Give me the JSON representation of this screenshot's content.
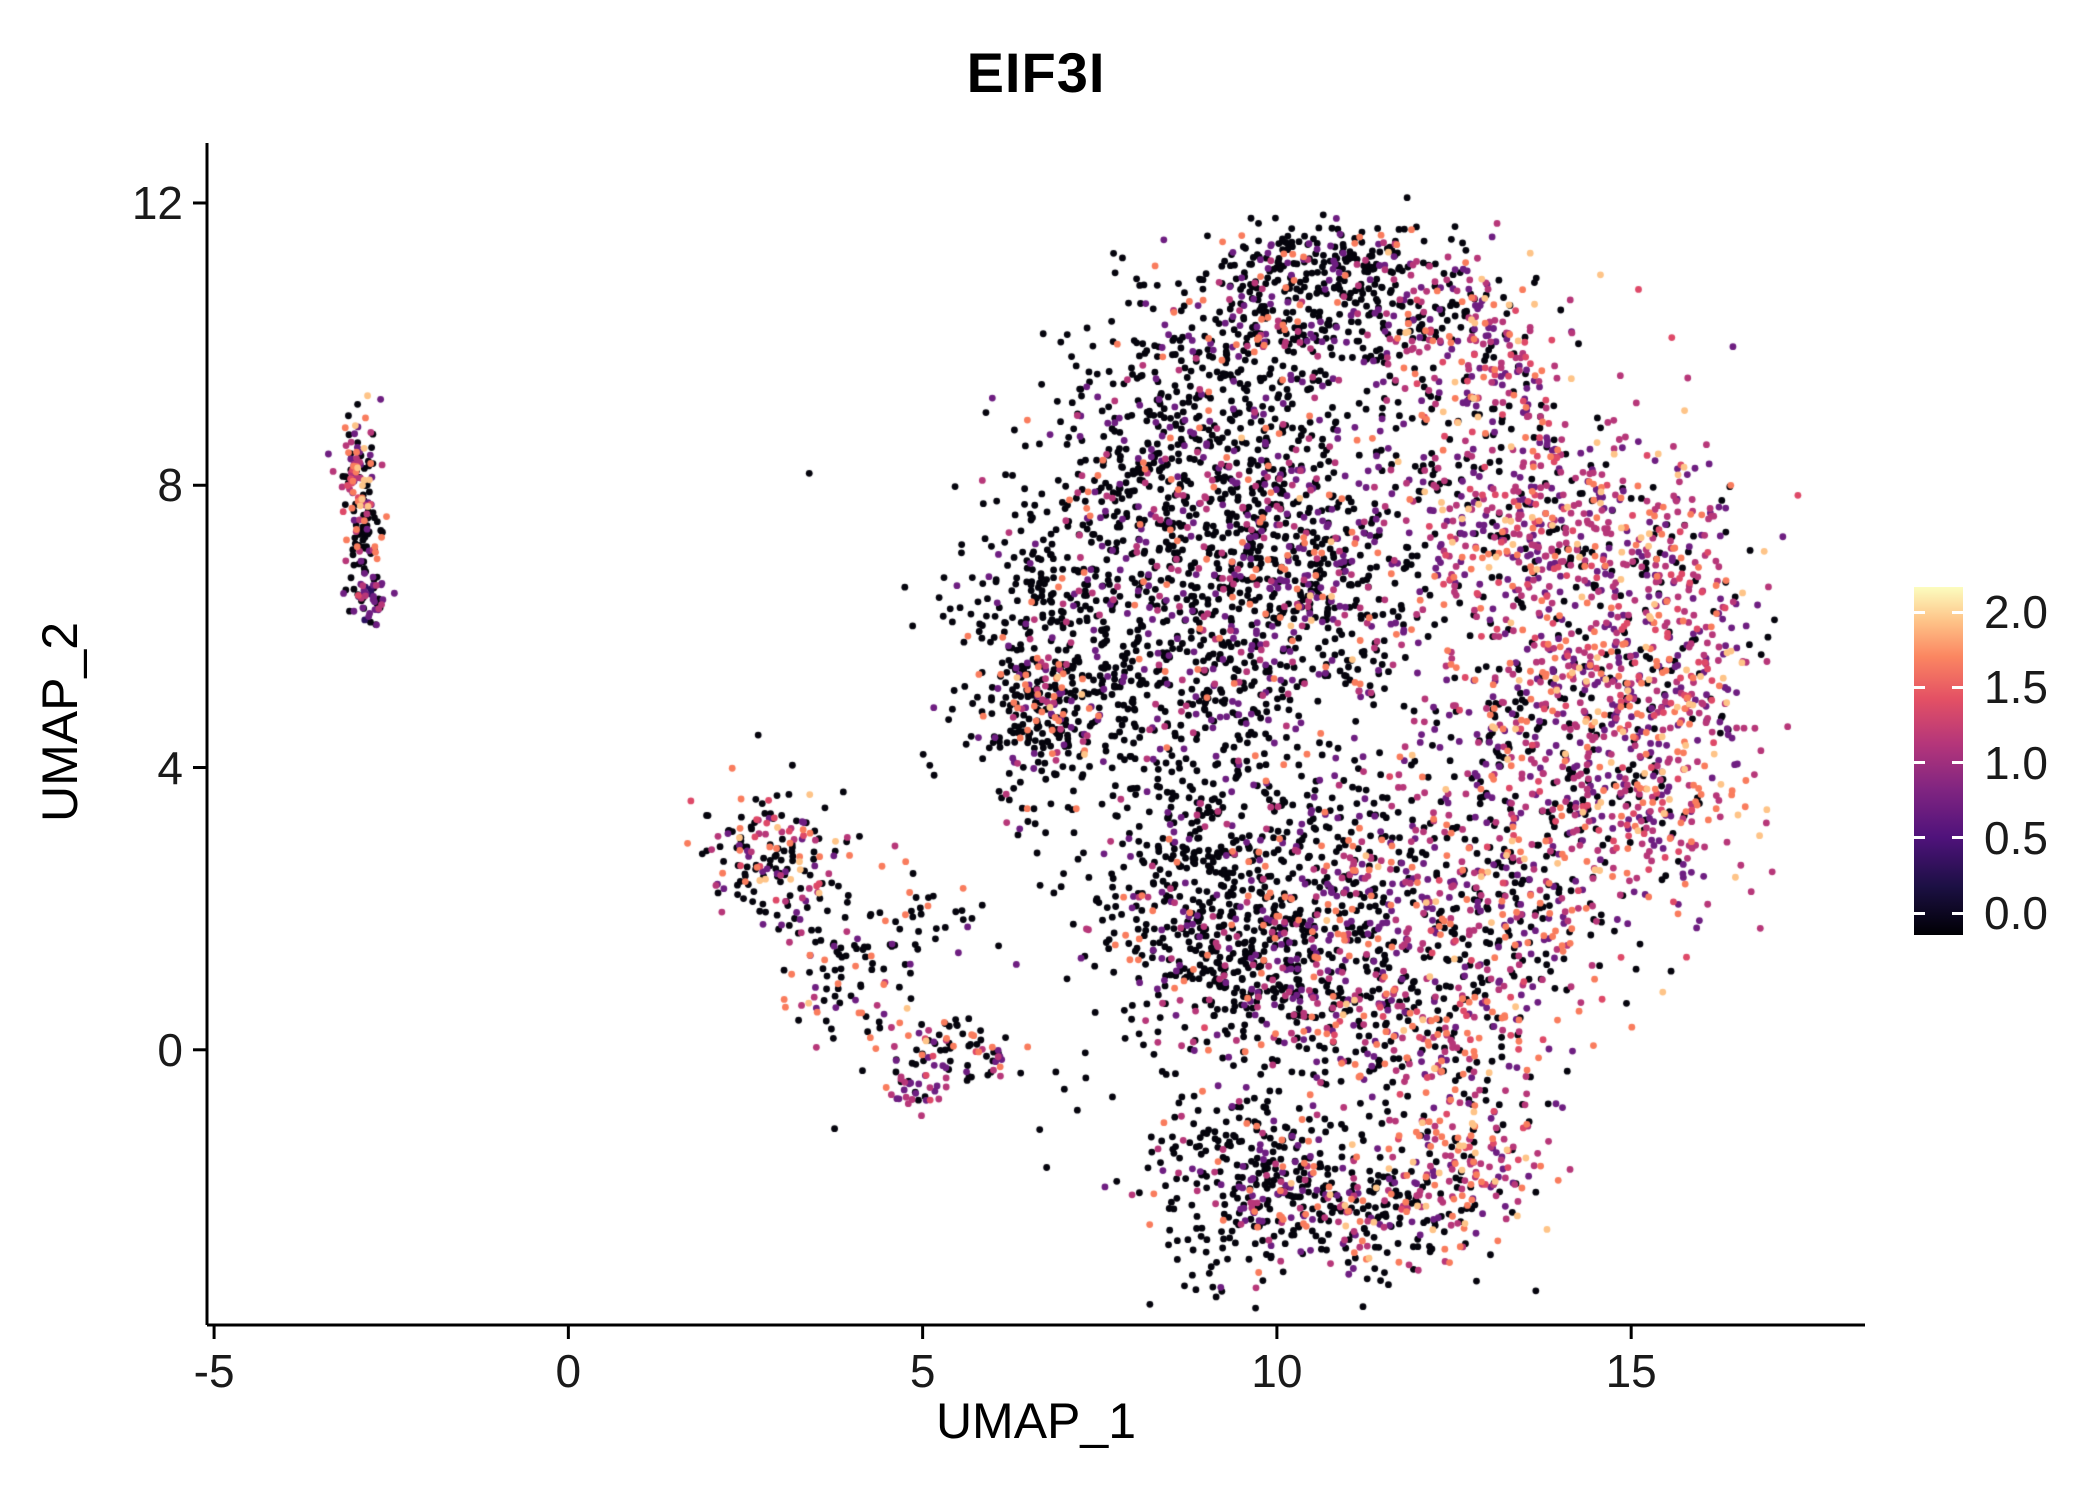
{
  "chart_data": {
    "type": "scatter",
    "title": "EIF3I",
    "xlabel": "UMAP_1",
    "ylabel": "UMAP_2",
    "xlim": [
      -5.1,
      18.3
    ],
    "ylim": [
      -3.9,
      12.85
    ],
    "x_ticks": [
      -5,
      0,
      5,
      10,
      15
    ],
    "x_tick_labels": [
      "-5",
      "0",
      "5",
      "10",
      "15"
    ],
    "y_ticks": [
      0,
      4,
      8,
      12
    ],
    "y_tick_labels": [
      "0",
      "4",
      "8",
      "12"
    ],
    "grid": false,
    "legend_position": "right",
    "point_radius_px": 3.4,
    "palette": {
      "black": "#05040d",
      "dark_purple": "#2c115f",
      "purple": "#6e1e81",
      "magenta": "#b73779",
      "pink": "#de4968",
      "salmon": "#f97c5d",
      "light": "#fec488",
      "cream": "#fcfdbf"
    },
    "palette_order": [
      "black",
      "dark_purple",
      "purple",
      "magenta",
      "pink",
      "salmon",
      "light",
      "cream"
    ],
    "colorbar": {
      "ticks": [
        2.0,
        1.5,
        1.0,
        0.5,
        0.0
      ],
      "tick_labels": [
        "2.0",
        "1.5",
        "1.0",
        "0.5",
        "0.0"
      ],
      "value_range": [
        0.0,
        2.2
      ],
      "stops": [
        {
          "pos": 0.0,
          "color": "#000004"
        },
        {
          "pos": 0.14,
          "color": "#1c1044"
        },
        {
          "pos": 0.28,
          "color": "#4f127b"
        },
        {
          "pos": 0.42,
          "color": "#812581"
        },
        {
          "pos": 0.55,
          "color": "#b5367a"
        },
        {
          "pos": 0.68,
          "color": "#e45164"
        },
        {
          "pos": 0.8,
          "color": "#fb8661"
        },
        {
          "pos": 0.9,
          "color": "#fec287"
        },
        {
          "pos": 1.0,
          "color": "#fcfdbf"
        }
      ]
    },
    "clusters": [
      {
        "name": "left-top",
        "cx": -2.95,
        "cy": 8.15,
        "sx": 0.13,
        "sy": 0.4,
        "n": 100,
        "weights": {
          "black": 0.4,
          "purple": 0.12,
          "magenta": 0.13,
          "pink": 0.1,
          "salmon": 0.18,
          "light": 0.07
        }
      },
      {
        "name": "left-mid",
        "cx": -2.87,
        "cy": 7.1,
        "sx": 0.1,
        "sy": 0.35,
        "n": 60,
        "weights": {
          "black": 0.7,
          "purple": 0.12,
          "magenta": 0.08,
          "salmon": 0.1
        }
      },
      {
        "name": "left-bottom",
        "cx": -2.8,
        "cy": 6.35,
        "sx": 0.13,
        "sy": 0.18,
        "n": 45,
        "weights": {
          "black": 0.25,
          "dark_purple": 0.15,
          "purple": 0.3,
          "magenta": 0.2,
          "pink": 0.05,
          "salmon": 0.05
        }
      },
      {
        "name": "mid-main",
        "cx": 2.95,
        "cy": 2.7,
        "sx": 0.5,
        "sy": 0.5,
        "n": 170,
        "weights": {
          "black": 0.52,
          "purple": 0.13,
          "magenta": 0.08,
          "pink": 0.05,
          "salmon": 0.16,
          "light": 0.06
        }
      },
      {
        "name": "mid-tail",
        "cx": 3.9,
        "cy": 1.15,
        "sx": 0.5,
        "sy": 0.55,
        "n": 90,
        "weights": {
          "black": 0.62,
          "purple": 0.15,
          "magenta": 0.08,
          "salmon": 0.12,
          "light": 0.03
        }
      },
      {
        "name": "mid-right",
        "cx": 5.2,
        "cy": 1.85,
        "sx": 0.55,
        "sy": 0.3,
        "n": 30,
        "weights": {
          "black": 0.85,
          "purple": 0.05,
          "salmon": 0.1
        }
      },
      {
        "name": "mid-low",
        "cx": 5.45,
        "cy": 0.0,
        "sx": 0.5,
        "sy": 0.22,
        "n": 80,
        "weights": {
          "black": 0.45,
          "purple": 0.1,
          "magenta": 0.15,
          "pink": 0.05,
          "salmon": 0.22,
          "light": 0.03
        }
      },
      {
        "name": "mid-low-tip",
        "cx": 4.85,
        "cy": -0.55,
        "sx": 0.22,
        "sy": 0.13,
        "n": 30,
        "weights": {
          "black": 0.2,
          "purple": 0.25,
          "magenta": 0.35,
          "pink": 0.1,
          "salmon": 0.1
        }
      },
      {
        "name": "main-top-left",
        "cx": 9.6,
        "cy": 10.2,
        "sx": 0.85,
        "sy": 0.75,
        "n": 260,
        "weights": {
          "black": 0.74,
          "purple": 0.14,
          "magenta": 0.07,
          "salmon": 0.05
        }
      },
      {
        "name": "main-top-edge",
        "cx": 10.7,
        "cy": 11.05,
        "sx": 0.8,
        "sy": 0.35,
        "n": 150,
        "weights": {
          "black": 0.78,
          "purple": 0.12,
          "magenta": 0.06,
          "salmon": 0.04
        }
      },
      {
        "name": "main-top-mid",
        "cx": 11.6,
        "cy": 10.4,
        "sx": 0.9,
        "sy": 0.6,
        "n": 220,
        "weights": {
          "black": 0.55,
          "purple": 0.2,
          "magenta": 0.14,
          "salmon": 0.08,
          "light": 0.03
        }
      },
      {
        "name": "main-top-right",
        "cx": 12.9,
        "cy": 9.8,
        "sx": 0.65,
        "sy": 0.75,
        "n": 190,
        "weights": {
          "black": 0.22,
          "purple": 0.25,
          "magenta": 0.28,
          "pink": 0.1,
          "salmon": 0.1,
          "light": 0.05
        }
      },
      {
        "name": "main-upper-left",
        "cx": 8.2,
        "cy": 8.7,
        "sx": 0.9,
        "sy": 0.9,
        "n": 270,
        "weights": {
          "black": 0.8,
          "purple": 0.11,
          "magenta": 0.05,
          "salmon": 0.04
        }
      },
      {
        "name": "main-left",
        "cx": 7.2,
        "cy": 5.9,
        "sx": 0.9,
        "sy": 1.1,
        "n": 380,
        "weights": {
          "black": 0.82,
          "purple": 0.09,
          "magenta": 0.05,
          "salmon": 0.04
        }
      },
      {
        "name": "main-left-dense",
        "cx": 6.65,
        "cy": 4.9,
        "sx": 0.45,
        "sy": 0.6,
        "n": 210,
        "weights": {
          "black": 0.68,
          "purple": 0.08,
          "magenta": 0.09,
          "salmon": 0.12,
          "light": 0.03
        }
      },
      {
        "name": "main-center-up",
        "cx": 9.5,
        "cy": 7.7,
        "sx": 1.0,
        "sy": 0.9,
        "n": 420,
        "weights": {
          "black": 0.68,
          "purple": 0.17,
          "magenta": 0.1,
          "salmon": 0.05
        }
      },
      {
        "name": "main-center",
        "cx": 9.3,
        "cy": 5.6,
        "sx": 0.85,
        "sy": 0.85,
        "n": 310,
        "weights": {
          "black": 0.72,
          "purple": 0.14,
          "magenta": 0.09,
          "salmon": 0.05
        }
      },
      {
        "name": "main-center-right",
        "cx": 10.7,
        "cy": 6.6,
        "sx": 0.85,
        "sy": 1.0,
        "n": 330,
        "weights": {
          "black": 0.55,
          "purple": 0.2,
          "magenta": 0.15,
          "salmon": 0.08,
          "light": 0.02
        }
      },
      {
        "name": "main-right-up",
        "cx": 13.3,
        "cy": 7.6,
        "sx": 1.0,
        "sy": 1.0,
        "n": 390,
        "weights": {
          "black": 0.24,
          "purple": 0.26,
          "magenta": 0.26,
          "pink": 0.08,
          "salmon": 0.11,
          "light": 0.05
        }
      },
      {
        "name": "main-right",
        "cx": 14.8,
        "cy": 6.2,
        "sx": 0.9,
        "sy": 1.2,
        "n": 430,
        "weights": {
          "black": 0.18,
          "purple": 0.24,
          "magenta": 0.28,
          "pink": 0.08,
          "salmon": 0.14,
          "light": 0.08
        }
      },
      {
        "name": "main-right-low",
        "cx": 13.6,
        "cy": 4.4,
        "sx": 1.0,
        "sy": 1.0,
        "n": 390,
        "weights": {
          "black": 0.3,
          "purple": 0.24,
          "magenta": 0.24,
          "pink": 0.06,
          "salmon": 0.11,
          "light": 0.05
        }
      },
      {
        "name": "main-right-edge",
        "cx": 15.9,
        "cy": 5.6,
        "sx": 0.45,
        "sy": 1.3,
        "n": 140,
        "weights": {
          "black": 0.16,
          "purple": 0.22,
          "magenta": 0.3,
          "pink": 0.1,
          "salmon": 0.14,
          "light": 0.08
        }
      },
      {
        "name": "main-right-arc",
        "cx": 15.5,
        "cy": 3.6,
        "sx": 0.6,
        "sy": 0.9,
        "n": 200,
        "weights": {
          "black": 0.18,
          "purple": 0.2,
          "magenta": 0.26,
          "pink": 0.1,
          "salmon": 0.18,
          "light": 0.08
        }
      },
      {
        "name": "main-bottom-left",
        "cx": 8.8,
        "cy": 2.6,
        "sx": 0.9,
        "sy": 1.0,
        "n": 430,
        "weights": {
          "black": 0.78,
          "purple": 0.11,
          "magenta": 0.07,
          "salmon": 0.04
        }
      },
      {
        "name": "main-bottom",
        "cx": 9.9,
        "cy": 1.2,
        "sx": 0.9,
        "sy": 0.8,
        "n": 390,
        "weights": {
          "black": 0.74,
          "purple": 0.12,
          "magenta": 0.08,
          "salmon": 0.06
        }
      },
      {
        "name": "main-bottom-mid",
        "cx": 11.3,
        "cy": 2.4,
        "sx": 0.9,
        "sy": 1.0,
        "n": 330,
        "weights": {
          "black": 0.55,
          "purple": 0.18,
          "magenta": 0.15,
          "salmon": 0.1,
          "light": 0.02
        }
      },
      {
        "name": "main-bottom-arc",
        "cx": 11.9,
        "cy": 0.35,
        "sx": 1.1,
        "sy": 0.5,
        "n": 270,
        "weights": {
          "black": 0.32,
          "purple": 0.18,
          "magenta": 0.22,
          "pink": 0.08,
          "salmon": 0.15,
          "light": 0.05
        }
      },
      {
        "name": "main-low-right",
        "cx": 13.3,
        "cy": 1.9,
        "sx": 0.8,
        "sy": 0.75,
        "n": 250,
        "weights": {
          "black": 0.4,
          "purple": 0.2,
          "magenta": 0.2,
          "pink": 0.05,
          "salmon": 0.12,
          "light": 0.03
        }
      },
      {
        "name": "lobe-left",
        "cx": 9.6,
        "cy": -1.8,
        "sx": 0.75,
        "sy": 0.7,
        "n": 300,
        "weights": {
          "black": 0.8,
          "purple": 0.09,
          "magenta": 0.06,
          "salmon": 0.05
        }
      },
      {
        "name": "lobe-mid",
        "cx": 11.2,
        "cy": -2.2,
        "sx": 0.9,
        "sy": 0.5,
        "n": 270,
        "weights": {
          "black": 0.55,
          "purple": 0.13,
          "magenta": 0.14,
          "salmon": 0.14,
          "light": 0.04
        }
      },
      {
        "name": "lobe-right",
        "cx": 12.8,
        "cy": -1.5,
        "sx": 0.55,
        "sy": 0.55,
        "n": 170,
        "weights": {
          "black": 0.22,
          "purple": 0.15,
          "magenta": 0.25,
          "pink": 0.08,
          "salmon": 0.2,
          "light": 0.1
        }
      },
      {
        "name": "sparse-noise",
        "cx": 6.0,
        "cy": 3.0,
        "sx": 2.2,
        "sy": 2.2,
        "n": 35,
        "weights": {
          "black": 0.85,
          "purple": 0.06,
          "magenta": 0.05,
          "salmon": 0.04
        }
      }
    ]
  }
}
